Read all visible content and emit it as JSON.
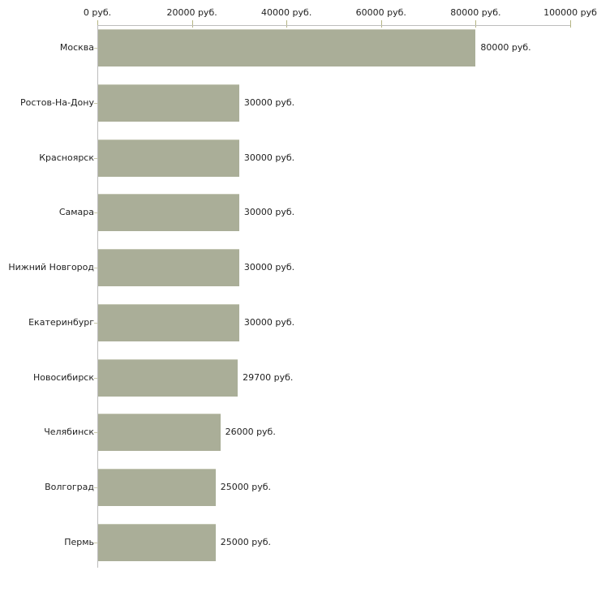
{
  "chart_data": {
    "type": "bar",
    "orientation": "horizontal",
    "title": "",
    "xlabel": "",
    "ylabel": "",
    "unit": "руб.",
    "categories": [
      "Москва",
      "Ростов-На-Дону",
      "Красноярск",
      "Самара",
      "Нижний Новгород",
      "Екатеринбург",
      "Новосибирск",
      "Челябинск",
      "Волгоград",
      "Пермь"
    ],
    "values": [
      80000,
      30000,
      30000,
      30000,
      30000,
      30000,
      29700,
      26000,
      25000,
      25000
    ],
    "value_labels": [
      "80000 руб.",
      "30000 руб.",
      "30000 руб.",
      "30000 руб.",
      "30000 руб.",
      "30000 руб.",
      "29700 руб.",
      "26000 руб.",
      "25000 руб.",
      "25000 руб."
    ],
    "x_tick_values": [
      0,
      20000,
      40000,
      60000,
      80000,
      100000
    ],
    "x_tick_labels": [
      "0 руб.",
      "20000 руб.",
      "40000 руб.",
      "60000 руб.",
      "80000 руб.",
      "100000 руб"
    ],
    "xlim": [
      0,
      100000
    ],
    "grid": false,
    "legend": false,
    "axis_position": "top"
  },
  "colors": {
    "bar": "#aaae98",
    "bar_top_highlight": "#c4c7b4",
    "axis_line": "#bdbdbd",
    "x_tick": "#b5b584",
    "y_tick": "#c9c9a9",
    "text": "#1f1f1f",
    "background": "#ffffff"
  }
}
